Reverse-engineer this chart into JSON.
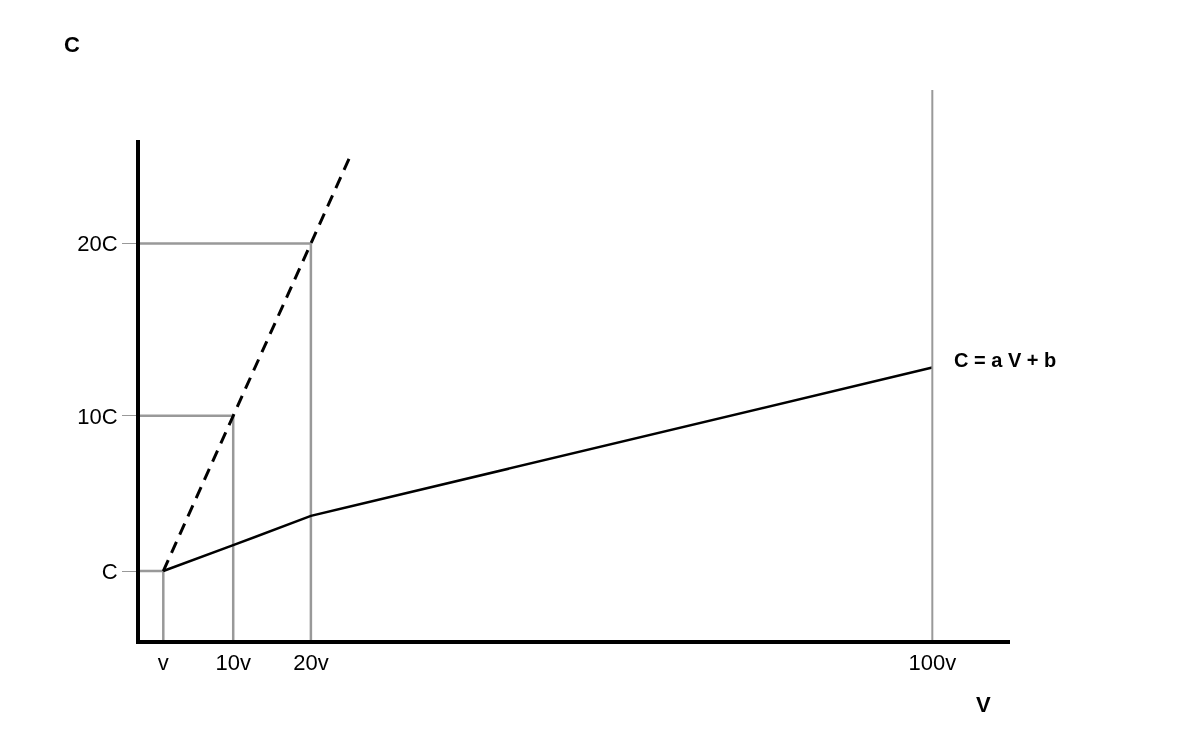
{
  "chart_data": {
    "type": "line",
    "xlabel": "V",
    "ylabel": "C",
    "xlim": [
      -2,
      110
    ],
    "ylim": [
      -3,
      26
    ],
    "xticks": [
      {
        "value": 1,
        "label": "v"
      },
      {
        "value": 10,
        "label": "10v"
      },
      {
        "value": 20,
        "label": "20v"
      },
      {
        "value": 100,
        "label": "100v"
      }
    ],
    "yticks": [
      {
        "value": 1,
        "label": "C"
      },
      {
        "value": 10,
        "label": "10C"
      },
      {
        "value": 20,
        "label": "20C"
      }
    ],
    "marker": "none",
    "series": [
      {
        "color": "#999999",
        "line_style": "solid",
        "x": [
          -2,
          1,
          1
        ],
        "values": [
          1,
          1,
          -3
        ]
      },
      {
        "color": "#999999",
        "line_style": "solid",
        "x": [
          -2,
          10,
          10
        ],
        "values": [
          10,
          10,
          -3
        ]
      },
      {
        "color": "#999999",
        "line_style": "solid",
        "x": [
          -2,
          20,
          20
        ],
        "values": [
          20,
          20,
          -3
        ]
      },
      {
        "color": "#000000",
        "line_style": "dashed",
        "x": [
          1,
          10,
          20,
          25
        ],
        "values": [
          1,
          10,
          20,
          25
        ]
      },
      {
        "color": "#000000",
        "line_style": "solid",
        "x": [
          1,
          10,
          20,
          100
        ],
        "values": [
          1,
          2.5,
          4.2,
          12.8
        ]
      }
    ],
    "ref_lines": [
      {
        "axis": "x",
        "value": 100,
        "color": "#999999"
      }
    ],
    "annotations": [
      {
        "text": "C = a V + b",
        "x": 100,
        "y": 12.8
      }
    ]
  }
}
